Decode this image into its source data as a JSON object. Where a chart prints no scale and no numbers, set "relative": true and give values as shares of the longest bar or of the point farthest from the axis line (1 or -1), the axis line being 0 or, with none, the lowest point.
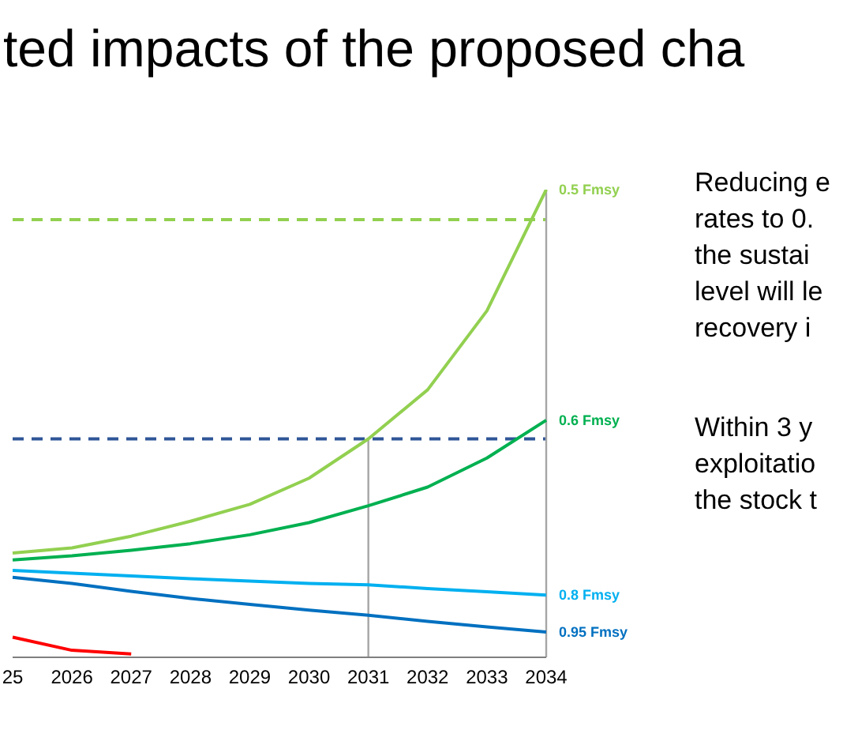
{
  "chart_data": {
    "type": "line",
    "title": "ted impacts of the proposed cha",
    "relative": true,
    "categories": [
      "25",
      "2026",
      "2027",
      "2028",
      "2029",
      "2030",
      "2031",
      "2032",
      "2033",
      "2034"
    ],
    "series": [
      {
        "name": "0.5 Fmsy",
        "color": "#92d050",
        "values": [
          0.223,
          0.234,
          0.259,
          0.291,
          0.327,
          0.383,
          0.467,
          0.572,
          0.741,
          1.0
        ]
      },
      {
        "name": "0.6 Fmsy",
        "color": "#00b050",
        "values": [
          0.208,
          0.217,
          0.229,
          0.243,
          0.262,
          0.288,
          0.324,
          0.364,
          0.426,
          0.507
        ]
      },
      {
        "name": "0.8 Fmsy",
        "color": "#00b0f0",
        "values": [
          0.186,
          0.18,
          0.174,
          0.168,
          0.163,
          0.158,
          0.155,
          0.147,
          0.14,
          0.133
        ]
      },
      {
        "name": "0.95 Fmsy",
        "color": "#0070c0",
        "values": [
          0.171,
          0.158,
          0.141,
          0.126,
          0.113,
          0.101,
          0.09,
          0.077,
          0.065,
          0.054
        ]
      },
      {
        "color": "#ff0000",
        "values": [
          0.043,
          0.015,
          0.007,
          null,
          null,
          null,
          null,
          null,
          null,
          null
        ]
      }
    ],
    "ref_lines": [
      {
        "axis": "y",
        "value": 0.936,
        "color": "#92d050",
        "line_style": "dashed"
      },
      {
        "axis": "y",
        "value": 0.467,
        "color": "#2f5597",
        "line_style": "dashed"
      },
      {
        "axis": "x",
        "value": "2031",
        "color": "#a6a6a6",
        "line_style": "solid"
      },
      {
        "axis": "x",
        "value": "2034",
        "color": "#a6a6a6",
        "line_style": "solid"
      }
    ],
    "annotations": [
      "Reducing e\nrates to 0.\nthe sustai\nlevel will le\nrecovery i",
      "Within 3 y\nexploitatio\nthe stock t"
    ],
    "marker": "none",
    "line_style": "solid",
    "grid": false,
    "legend": false
  }
}
